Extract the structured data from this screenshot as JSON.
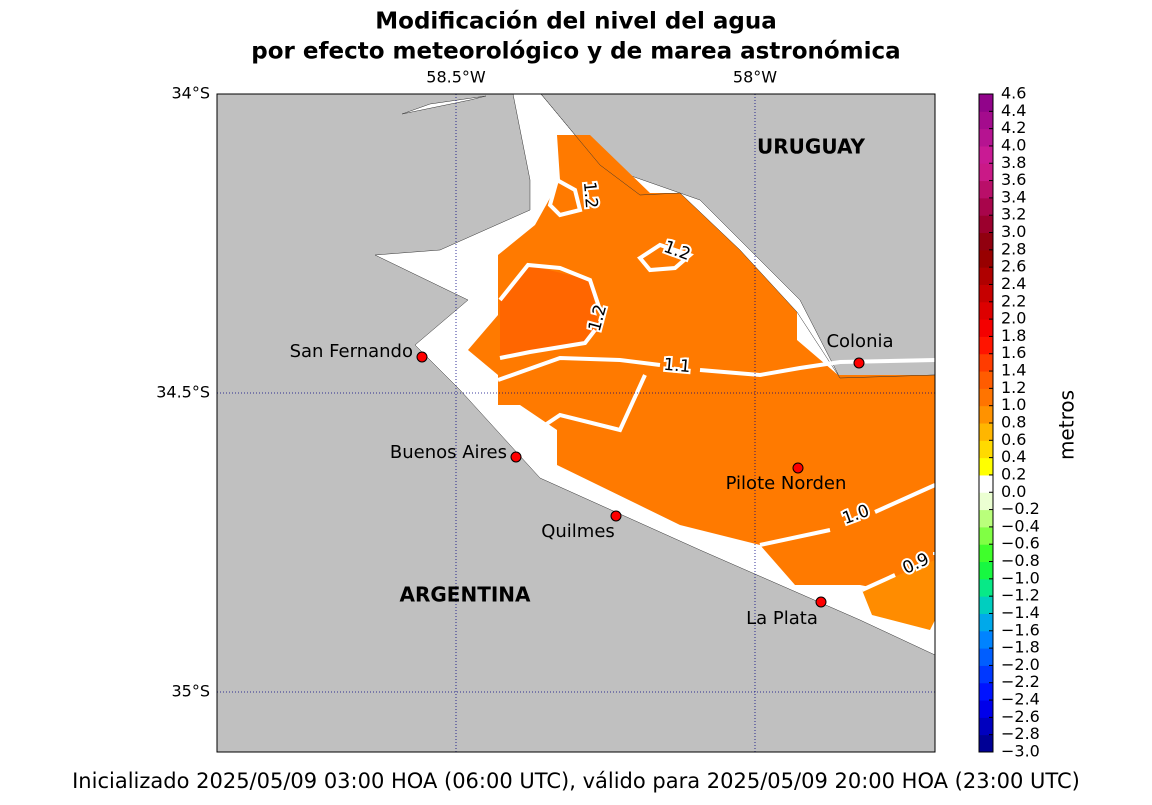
{
  "title": [
    "Modificación del nivel del agua",
    "por efecto meteorológico y de marea astronómica"
  ],
  "map": {
    "lon_ticks": [
      {
        "value": -58.5,
        "label": "58.5°W"
      },
      {
        "value": -58,
        "label": "58°W"
      }
    ],
    "lat_ticks": [
      {
        "value": -34,
        "label": "34°S"
      },
      {
        "value": -34.5,
        "label": "34.5°S"
      },
      {
        "value": -35,
        "label": "35°S"
      }
    ],
    "countries": [
      "URUGUAY",
      "ARGENTINA"
    ],
    "places": [
      "San Fernando",
      "Colonia",
      "Buenos Aires",
      "Pilote Norden",
      "Quilmes",
      "La Plata"
    ],
    "contour_labels": [
      "1.2",
      "1.2",
      "1.2",
      "1.1",
      "1.0",
      "0.9"
    ]
  },
  "colorbar": {
    "label": "metros",
    "ticks": [
      {
        "value": -3.0,
        "label": "−3.0"
      },
      {
        "value": -2.8,
        "label": "−2.8"
      },
      {
        "value": -2.6,
        "label": "−2.6"
      },
      {
        "value": -2.4,
        "label": "−2.4"
      },
      {
        "value": -2.2,
        "label": "−2.2"
      },
      {
        "value": -2.0,
        "label": "−2.0"
      },
      {
        "value": -1.8,
        "label": "−1.8"
      },
      {
        "value": -1.6,
        "label": "−1.6"
      },
      {
        "value": -1.4,
        "label": "−1.4"
      },
      {
        "value": -1.2,
        "label": "−1.2"
      },
      {
        "value": -1.0,
        "label": "−1.0"
      },
      {
        "value": -0.8,
        "label": "−0.8"
      },
      {
        "value": -0.6,
        "label": "−0.6"
      },
      {
        "value": -0.4,
        "label": "−0.4"
      },
      {
        "value": -0.2,
        "label": "−0.2"
      },
      {
        "value": 0.0,
        "label": "0.0"
      },
      {
        "value": 0.2,
        "label": "0.2"
      },
      {
        "value": 0.4,
        "label": "0.4"
      },
      {
        "value": 0.6,
        "label": "0.6"
      },
      {
        "value": 0.8,
        "label": "0.8"
      },
      {
        "value": 1.0,
        "label": "1.0"
      },
      {
        "value": 1.2,
        "label": "1.2"
      },
      {
        "value": 1.4,
        "label": "1.4"
      },
      {
        "value": 1.6,
        "label": "1.6"
      },
      {
        "value": 1.8,
        "label": "1.8"
      },
      {
        "value": 2.0,
        "label": "2.0"
      },
      {
        "value": 2.2,
        "label": "2.2"
      },
      {
        "value": 2.4,
        "label": "2.4"
      },
      {
        "value": 2.6,
        "label": "2.6"
      },
      {
        "value": 2.8,
        "label": "2.8"
      },
      {
        "value": 3.0,
        "label": "3.0"
      },
      {
        "value": 3.2,
        "label": "3.2"
      },
      {
        "value": 3.4,
        "label": "3.4"
      },
      {
        "value": 3.6,
        "label": "3.6"
      },
      {
        "value": 3.8,
        "label": "3.8"
      },
      {
        "value": 4.0,
        "label": "4.0"
      },
      {
        "value": 4.2,
        "label": "4.2"
      },
      {
        "value": 4.4,
        "label": "4.4"
      },
      {
        "value": 4.6,
        "label": "4.6"
      }
    ]
  },
  "footer": "Inicializado 2025/05/09 03:00 HOA (06:00 UTC), válido para 2025/05/09 20:00 HOA (23:00 UTC)"
}
